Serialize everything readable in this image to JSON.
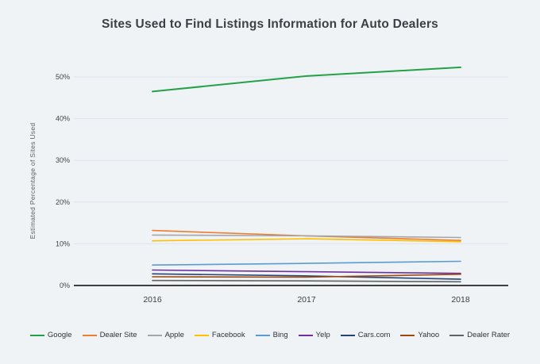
{
  "page": {
    "background": "#f0f3f5"
  },
  "chart_data": {
    "type": "line",
    "title": "Sites Used to Find Listings Information for Auto Dealers",
    "ylabel": "Estimated Percentage of Sites Used",
    "xlabel": "",
    "categories": [
      "2016",
      "2017",
      "2018"
    ],
    "y_ticks": [
      0,
      10,
      20,
      30,
      40,
      50
    ],
    "y_tick_labels": [
      "0%",
      "10%",
      "20%",
      "30%",
      "40%",
      "50%"
    ],
    "ylim": [
      0,
      55
    ],
    "grid": true,
    "legend_position": "bottom",
    "axis_color": "#3f3f3f",
    "grid_color": "#dce4f0",
    "series": [
      {
        "name": "Google",
        "color": "#24a148",
        "values": [
          46.5,
          50.2,
          52.3
        ]
      },
      {
        "name": "Dealer Site",
        "color": "#ED7D31",
        "values": [
          13.2,
          11.9,
          10.8
        ]
      },
      {
        "name": "Apple",
        "color": "#A6A6A6",
        "values": [
          12.1,
          11.9,
          11.5
        ]
      },
      {
        "name": "Facebook",
        "color": "#FFC000",
        "values": [
          10.7,
          11.2,
          10.5
        ]
      },
      {
        "name": "Bing",
        "color": "#5B9BD5",
        "values": [
          4.9,
          5.3,
          5.8
        ]
      },
      {
        "name": "Yelp",
        "color": "#7030A0",
        "values": [
          3.7,
          3.3,
          2.9
        ]
      },
      {
        "name": "Cars.com",
        "color": "#264478",
        "values": [
          2.8,
          2.3,
          1.5
        ]
      },
      {
        "name": "Yahoo",
        "color": "#9E480E",
        "values": [
          2.1,
          2.0,
          2.7
        ]
      },
      {
        "name": "Dealer Rater",
        "color": "#636363",
        "values": [
          1.2,
          1.1,
          0.9
        ]
      }
    ]
  }
}
